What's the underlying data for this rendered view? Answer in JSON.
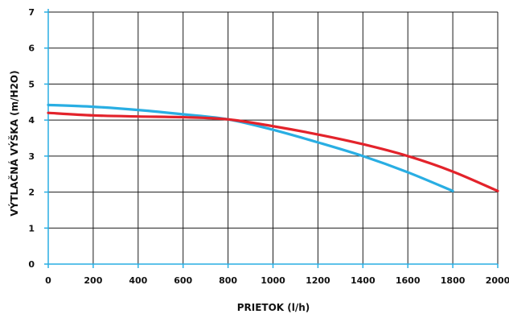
{
  "chart_data": {
    "type": "line",
    "title": "",
    "xlabel": "PRIETOK (l/h)",
    "ylabel": "VÝTLAČNÁ VÝŠKA (m/H2O)",
    "xlim": [
      0,
      2000
    ],
    "ylim": [
      0,
      7
    ],
    "x_ticks": [
      0,
      200,
      400,
      600,
      800,
      1000,
      1200,
      1400,
      1600,
      1800,
      2000
    ],
    "y_ticks": [
      0,
      1,
      2,
      3,
      4,
      5,
      6,
      7
    ],
    "grid": true,
    "legend": "none",
    "series": [
      {
        "color": "#29aee3",
        "x": [
          0,
          200,
          400,
          600,
          800,
          1000,
          1200,
          1400,
          1600,
          1800
        ],
        "y": [
          4.42,
          4.37,
          4.28,
          4.16,
          4.02,
          3.73,
          3.38,
          3.0,
          2.55,
          2.03
        ]
      },
      {
        "color": "#e3232b",
        "x": [
          0,
          200,
          400,
          600,
          800,
          1000,
          1200,
          1400,
          1600,
          1800,
          2000
        ],
        "y": [
          4.2,
          4.13,
          4.1,
          4.08,
          4.02,
          3.83,
          3.6,
          3.33,
          3.0,
          2.57,
          2.03
        ]
      }
    ]
  }
}
